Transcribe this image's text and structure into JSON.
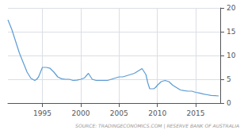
{
  "chart_data": {
    "type": "line",
    "annotation": "SOURCE: TRADINGECONOMICS.COM | RESERVE BANK OF AUSTRALIA",
    "x": [
      1990.5,
      1991.0,
      1991.5,
      1992.0,
      1992.5,
      1993.0,
      1993.5,
      1994.0,
      1994.25,
      1994.5,
      1994.75,
      1995.0,
      1995.5,
      1996.0,
      1996.5,
      1997.0,
      1997.5,
      1998.0,
      1998.5,
      1999.0,
      1999.5,
      2000.0,
      2000.5,
      2001.0,
      2001.3,
      2001.5,
      2002.0,
      2002.5,
      2003.0,
      2003.5,
      2004.0,
      2004.5,
      2005.0,
      2005.5,
      2006.0,
      2006.5,
      2007.0,
      2007.5,
      2008.0,
      2008.5,
      2008.75,
      2009.0,
      2009.5,
      2009.75,
      2010.0,
      2010.5,
      2011.0,
      2011.5,
      2012.0,
      2012.5,
      2013.0,
      2013.5,
      2014.0,
      2014.5,
      2015.0,
      2015.5,
      2016.0,
      2016.5,
      2017.0,
      2017.5,
      2018.0
    ],
    "values": [
      17.5,
      15.5,
      13.0,
      10.5,
      8.5,
      6.5,
      5.2,
      4.75,
      5.0,
      5.5,
      6.5,
      7.5,
      7.5,
      7.3,
      6.5,
      5.5,
      5.1,
      5.0,
      5.0,
      4.75,
      4.8,
      5.0,
      5.3,
      6.25,
      5.5,
      5.0,
      4.75,
      4.75,
      4.75,
      4.75,
      5.0,
      5.25,
      5.5,
      5.5,
      5.75,
      6.0,
      6.25,
      6.75,
      7.25,
      6.0,
      4.25,
      3.0,
      3.0,
      3.25,
      3.75,
      4.5,
      4.75,
      4.5,
      3.75,
      3.25,
      2.75,
      2.6,
      2.5,
      2.5,
      2.25,
      2.1,
      1.9,
      1.75,
      1.6,
      1.55,
      1.5
    ],
    "color": "#5b9bd5",
    "xlim": [
      1990.5,
      2018.2
    ],
    "xticks": [
      1995,
      2000,
      2005,
      2010,
      2015
    ],
    "ylim": [
      0,
      20
    ],
    "yticks": [
      0,
      5,
      10,
      15,
      20
    ],
    "grid": true
  }
}
